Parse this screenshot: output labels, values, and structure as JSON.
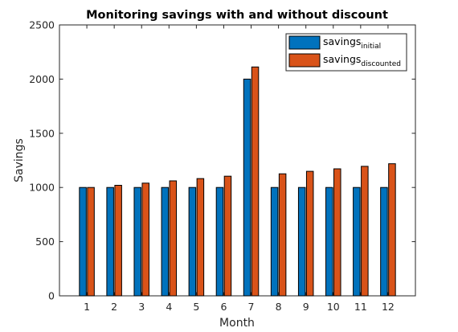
{
  "chart_data": {
    "type": "bar",
    "title": "Monitoring savings with and without discount",
    "xlabel": "Month",
    "ylabel": "Savings",
    "ylim": [
      0,
      2500
    ],
    "yticks": [
      0,
      500,
      1000,
      1500,
      2000,
      2500
    ],
    "categories": [
      "1",
      "2",
      "3",
      "4",
      "5",
      "6",
      "7",
      "8",
      "9",
      "10",
      "11",
      "12"
    ],
    "grid": false,
    "legend_position": "top-right",
    "series": [
      {
        "name": "savings",
        "name_subscript": "initial",
        "color": "#0072BD",
        "values": [
          1000,
          1000,
          1000,
          1000,
          1000,
          1000,
          2000,
          1000,
          1000,
          1000,
          1000,
          1000
        ]
      },
      {
        "name": "savings",
        "name_subscript": "discounted",
        "color": "#D95319",
        "values": [
          1000,
          1020,
          1040,
          1061,
          1082,
          1104,
          2112,
          1126,
          1149,
          1172,
          1195,
          1219
        ]
      }
    ]
  }
}
